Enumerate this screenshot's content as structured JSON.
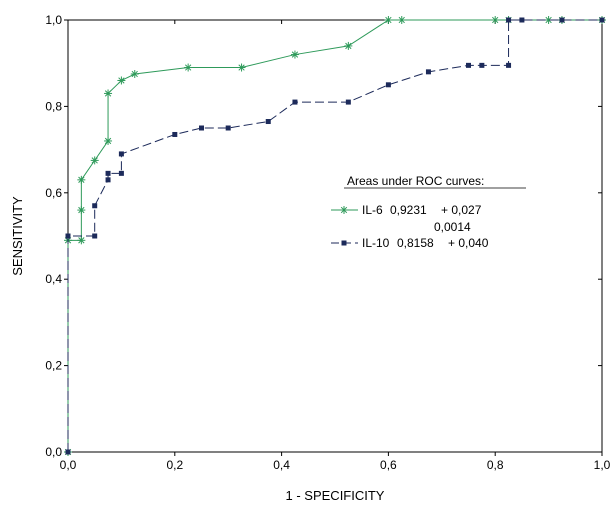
{
  "chart_data": {
    "type": "line",
    "xlabel": "1 - SPECIFICITY",
    "ylabel": "SENSITIVITY",
    "xlim": [
      0,
      1
    ],
    "ylim": [
      0,
      1
    ],
    "x_ticks": [
      "0,0",
      "0,2",
      "0,4",
      "0,6",
      "0,8",
      "1,0"
    ],
    "y_ticks": [
      "0,0",
      "0,2",
      "0,4",
      "0,6",
      "0,8",
      "1,0"
    ],
    "grid": false,
    "legend_position": "center-right",
    "legend_title": "Areas under ROC curves:",
    "series": [
      {
        "name": "IL-6",
        "auc": "0,9231",
        "se": "+ 0,027",
        "p": "0,0014",
        "color": "#2e9a5a",
        "marker": "asterisk",
        "points": [
          [
            0.0,
            0.0
          ],
          [
            0.0,
            0.49
          ],
          [
            0.025,
            0.49
          ],
          [
            0.025,
            0.56
          ],
          [
            0.025,
            0.63
          ],
          [
            0.05,
            0.675
          ],
          [
            0.075,
            0.72
          ],
          [
            0.075,
            0.83
          ],
          [
            0.1,
            0.86
          ],
          [
            0.125,
            0.875
          ],
          [
            0.225,
            0.89
          ],
          [
            0.325,
            0.89
          ],
          [
            0.425,
            0.92
          ],
          [
            0.525,
            0.94
          ],
          [
            0.6,
            1.0
          ],
          [
            0.625,
            1.0
          ],
          [
            0.8,
            1.0
          ],
          [
            0.825,
            1.0
          ],
          [
            0.9,
            1.0
          ],
          [
            0.925,
            1.0
          ],
          [
            1.0,
            1.0
          ]
        ]
      },
      {
        "name": "IL-10",
        "auc": "0,8158",
        "se": "+ 0,040",
        "color": "#1c2a5a",
        "marker": "square",
        "points": [
          [
            0.0,
            0.0
          ],
          [
            0.0,
            0.5
          ],
          [
            0.05,
            0.5
          ],
          [
            0.05,
            0.57
          ],
          [
            0.075,
            0.63
          ],
          [
            0.075,
            0.645
          ],
          [
            0.1,
            0.645
          ],
          [
            0.1,
            0.69
          ],
          [
            0.2,
            0.735
          ],
          [
            0.25,
            0.75
          ],
          [
            0.3,
            0.75
          ],
          [
            0.375,
            0.765
          ],
          [
            0.425,
            0.81
          ],
          [
            0.525,
            0.81
          ],
          [
            0.6,
            0.85
          ],
          [
            0.675,
            0.88
          ],
          [
            0.75,
            0.895
          ],
          [
            0.775,
            0.895
          ],
          [
            0.825,
            0.895
          ],
          [
            0.825,
            1.0
          ],
          [
            0.85,
            1.0
          ],
          [
            0.925,
            1.0
          ],
          [
            1.0,
            1.0
          ]
        ]
      }
    ]
  }
}
